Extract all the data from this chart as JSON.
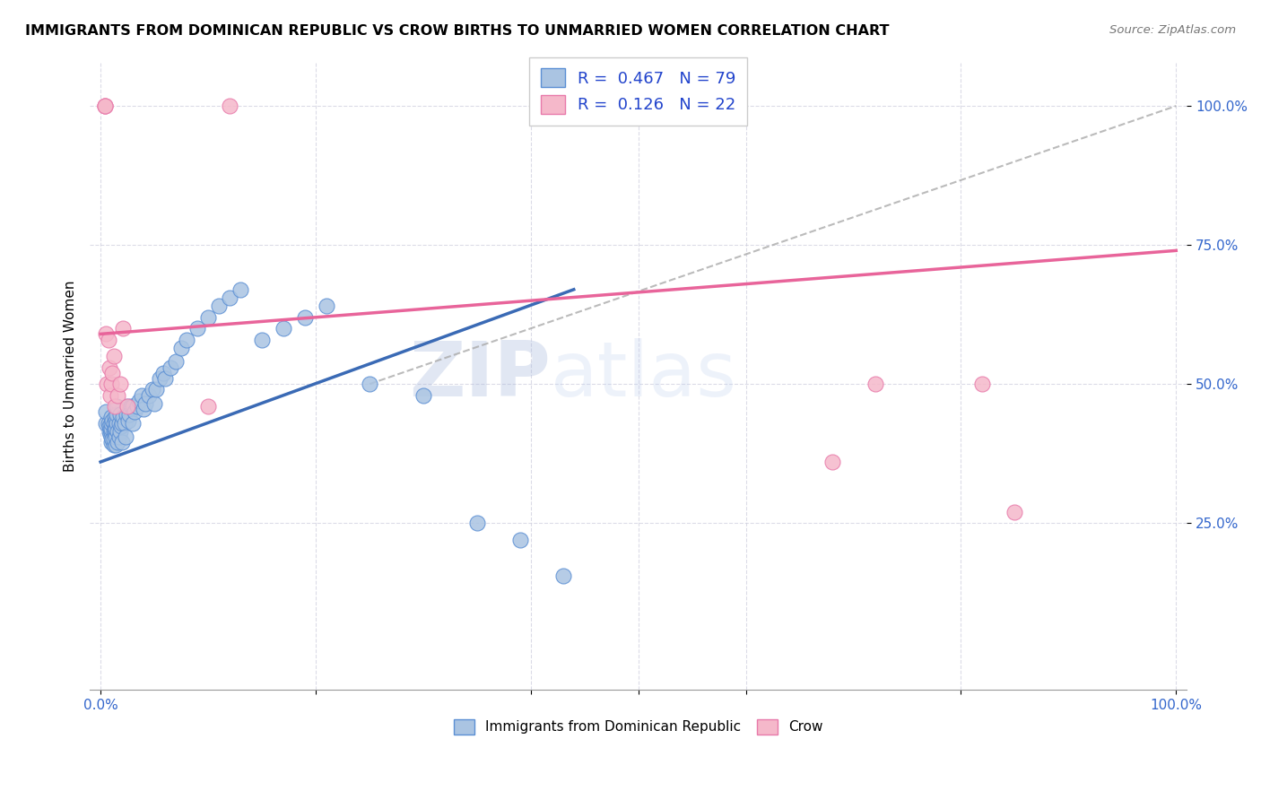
{
  "title": "IMMIGRANTS FROM DOMINICAN REPUBLIC VS CROW BIRTHS TO UNMARRIED WOMEN CORRELATION CHART",
  "source": "Source: ZipAtlas.com",
  "ylabel": "Births to Unmarried Women",
  "ytick_labels": [
    "25.0%",
    "50.0%",
    "75.0%",
    "100.0%"
  ],
  "ytick_positions": [
    0.25,
    0.5,
    0.75,
    1.0
  ],
  "legend_blue_R": 0.467,
  "legend_pink_R": 0.126,
  "legend_blue_N": 79,
  "legend_pink_N": 22,
  "bottom_legend_blue": "Immigrants from Dominican Republic",
  "bottom_legend_pink": "Crow",
  "blue_color": "#aac4e2",
  "blue_edge_color": "#5b8fd4",
  "blue_line_color": "#3a6ab5",
  "pink_color": "#f5b8ca",
  "pink_edge_color": "#e87aaa",
  "pink_line_color": "#e8649a",
  "dashed_line_color": "#aaaaaa",
  "watermark_zip": "ZIP",
  "watermark_atlas": "atlas",
  "blue_points_x": [
    0.005,
    0.005,
    0.007,
    0.008,
    0.008,
    0.009,
    0.009,
    0.01,
    0.01,
    0.01,
    0.01,
    0.01,
    0.01,
    0.011,
    0.011,
    0.012,
    0.012,
    0.012,
    0.012,
    0.013,
    0.013,
    0.013,
    0.014,
    0.014,
    0.014,
    0.014,
    0.015,
    0.015,
    0.015,
    0.016,
    0.016,
    0.017,
    0.017,
    0.018,
    0.018,
    0.019,
    0.02,
    0.02,
    0.021,
    0.022,
    0.023,
    0.024,
    0.025,
    0.026,
    0.027,
    0.028,
    0.03,
    0.03,
    0.032,
    0.034,
    0.036,
    0.038,
    0.04,
    0.042,
    0.045,
    0.048,
    0.05,
    0.052,
    0.055,
    0.058,
    0.06,
    0.065,
    0.07,
    0.075,
    0.08,
    0.09,
    0.1,
    0.11,
    0.12,
    0.13,
    0.15,
    0.17,
    0.19,
    0.21,
    0.25,
    0.3,
    0.35,
    0.39,
    0.43
  ],
  "blue_points_y": [
    0.43,
    0.45,
    0.43,
    0.415,
    0.425,
    0.41,
    0.42,
    0.395,
    0.405,
    0.415,
    0.42,
    0.43,
    0.44,
    0.4,
    0.435,
    0.39,
    0.4,
    0.415,
    0.43,
    0.415,
    0.42,
    0.44,
    0.39,
    0.405,
    0.42,
    0.435,
    0.43,
    0.445,
    0.46,
    0.395,
    0.415,
    0.405,
    0.43,
    0.415,
    0.445,
    0.425,
    0.395,
    0.43,
    0.44,
    0.43,
    0.405,
    0.445,
    0.46,
    0.435,
    0.445,
    0.46,
    0.43,
    0.46,
    0.45,
    0.46,
    0.47,
    0.48,
    0.455,
    0.465,
    0.48,
    0.49,
    0.465,
    0.49,
    0.51,
    0.52,
    0.51,
    0.53,
    0.54,
    0.565,
    0.58,
    0.6,
    0.62,
    0.64,
    0.655,
    0.67,
    0.58,
    0.6,
    0.62,
    0.64,
    0.5,
    0.48,
    0.25,
    0.22,
    0.155
  ],
  "pink_points_x": [
    0.004,
    0.004,
    0.004,
    0.005,
    0.006,
    0.007,
    0.008,
    0.009,
    0.01,
    0.011,
    0.012,
    0.013,
    0.016,
    0.018,
    0.021,
    0.025,
    0.1,
    0.12,
    0.68,
    0.72,
    0.82,
    0.85
  ],
  "pink_points_y": [
    1.0,
    1.0,
    1.0,
    0.59,
    0.5,
    0.58,
    0.53,
    0.48,
    0.5,
    0.52,
    0.55,
    0.46,
    0.48,
    0.5,
    0.6,
    0.46,
    0.46,
    1.0,
    0.36,
    0.5,
    0.5,
    0.27
  ],
  "blue_trend_x": [
    0.0,
    0.44
  ],
  "blue_trend_y": [
    0.36,
    0.67
  ],
  "pink_trend_x": [
    0.0,
    1.0
  ],
  "pink_trend_y": [
    0.59,
    0.74
  ],
  "dashed_trend_x": [
    0.25,
    1.0
  ],
  "dashed_trend_y": [
    0.5,
    1.0
  ],
  "xlim": [
    -0.01,
    1.01
  ],
  "ylim": [
    -0.05,
    1.08
  ]
}
